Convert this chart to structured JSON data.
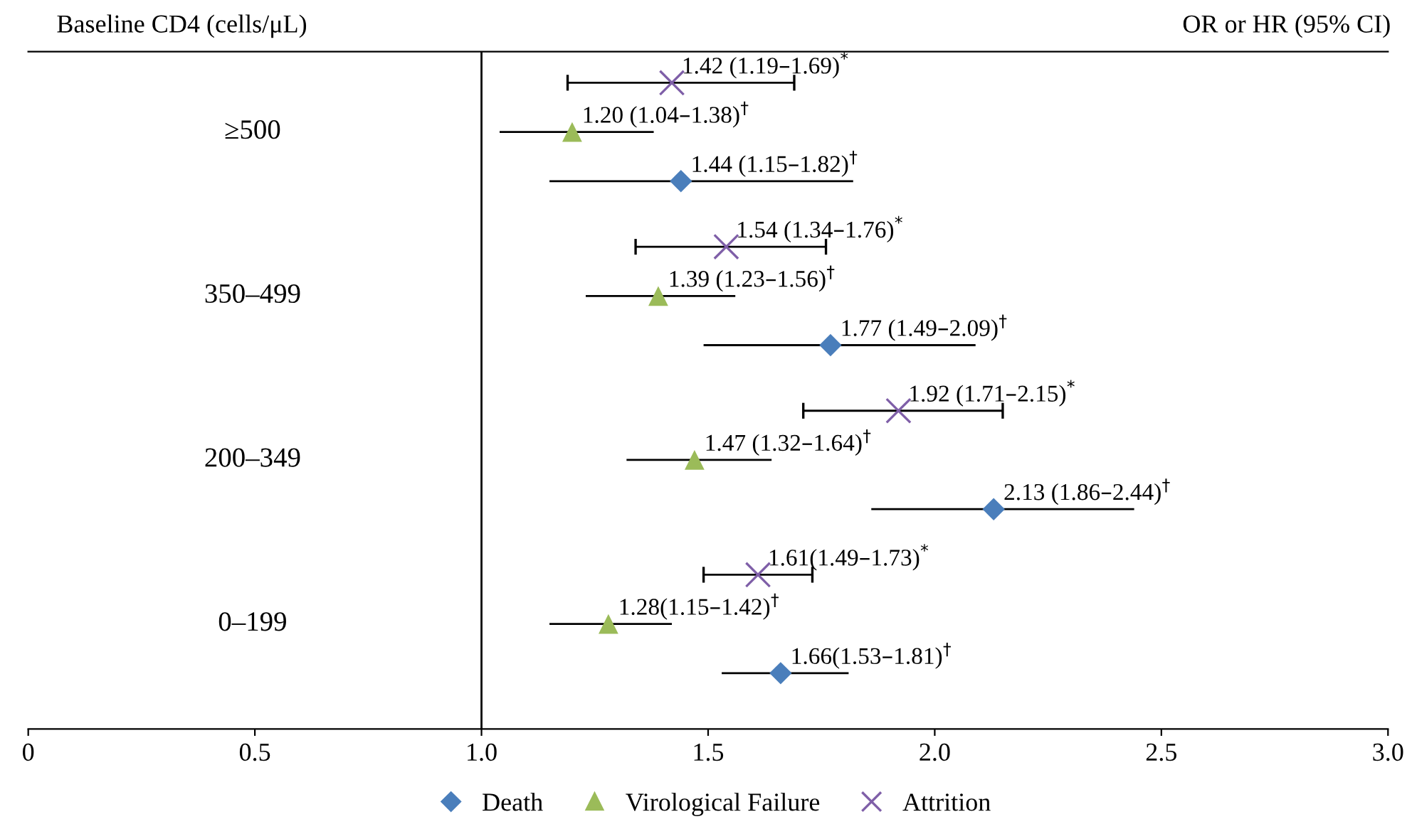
{
  "chart_data": {
    "type": "scatter",
    "orientation": "horizontal",
    "ylabel": "Baseline CD4 (cells/μL)",
    "annotations": [
      "OR or HR (95% CI)"
    ],
    "categories": [
      "≥500",
      "350–499",
      "200–349",
      "0–199"
    ],
    "series": [
      {
        "name": "Death",
        "color": "#4a7ebb",
        "marker": "diamond",
        "values": [
          1.44,
          1.77,
          2.13,
          1.66
        ],
        "errors": [
          [
            1.15,
            1.82
          ],
          [
            1.49,
            2.09
          ],
          [
            1.86,
            2.44
          ],
          [
            1.53,
            1.81
          ]
        ],
        "value_labels": [
          "1.44 (1.15–1.82)$^{†}$",
          "1.77 (1.49–2.09)$^{†}$",
          "2.13 (1.86–2.44)$^{†}$",
          "1.66(1.53–1.81)$^{†}$"
        ]
      },
      {
        "name": "Virological Failure",
        "color": "#9bbb59",
        "marker": "triangle",
        "values": [
          1.2,
          1.39,
          1.47,
          1.28
        ],
        "errors": [
          [
            1.04,
            1.38
          ],
          [
            1.23,
            1.56
          ],
          [
            1.32,
            1.64
          ],
          [
            1.15,
            1.42
          ]
        ],
        "value_labels": [
          "1.20 (1.04–1.38)$^{†}$",
          "1.39 (1.23–1.56)$^{†}$",
          "1.47 (1.32–1.64)$^{†}$",
          "1.28(1.15–1.42)$^{†}$"
        ]
      },
      {
        "name": "Attrition",
        "color": "#7f5fa8",
        "marker": "cross",
        "values": [
          1.42,
          1.54,
          1.92,
          1.61
        ],
        "errors": [
          [
            1.19,
            1.69
          ],
          [
            1.34,
            1.76
          ],
          [
            1.71,
            2.15
          ],
          [
            1.49,
            1.73
          ]
        ],
        "value_labels": [
          "1.42 (1.19–1.69)$^{*}$",
          "1.54 (1.34–1.76)$^{*}$",
          "1.92 (1.71–2.15)$^{*}$",
          "1.61(1.49–1.73)$^{*}$"
        ]
      }
    ],
    "xlim": [
      0,
      3.0
    ],
    "xticks": [
      0,
      0.5,
      {
        "value": 1.0,
        "label": "1.0"
      },
      1.5,
      {
        "value": 2.0,
        "label": "2.0"
      },
      2.5,
      {
        "value": 3.0,
        "label": "3.0"
      }
    ],
    "ref_lines": [
      {
        "axis": "x",
        "value": 1.0,
        "color": "#000000"
      }
    ],
    "legend": "bottom",
    "grid": false
  }
}
